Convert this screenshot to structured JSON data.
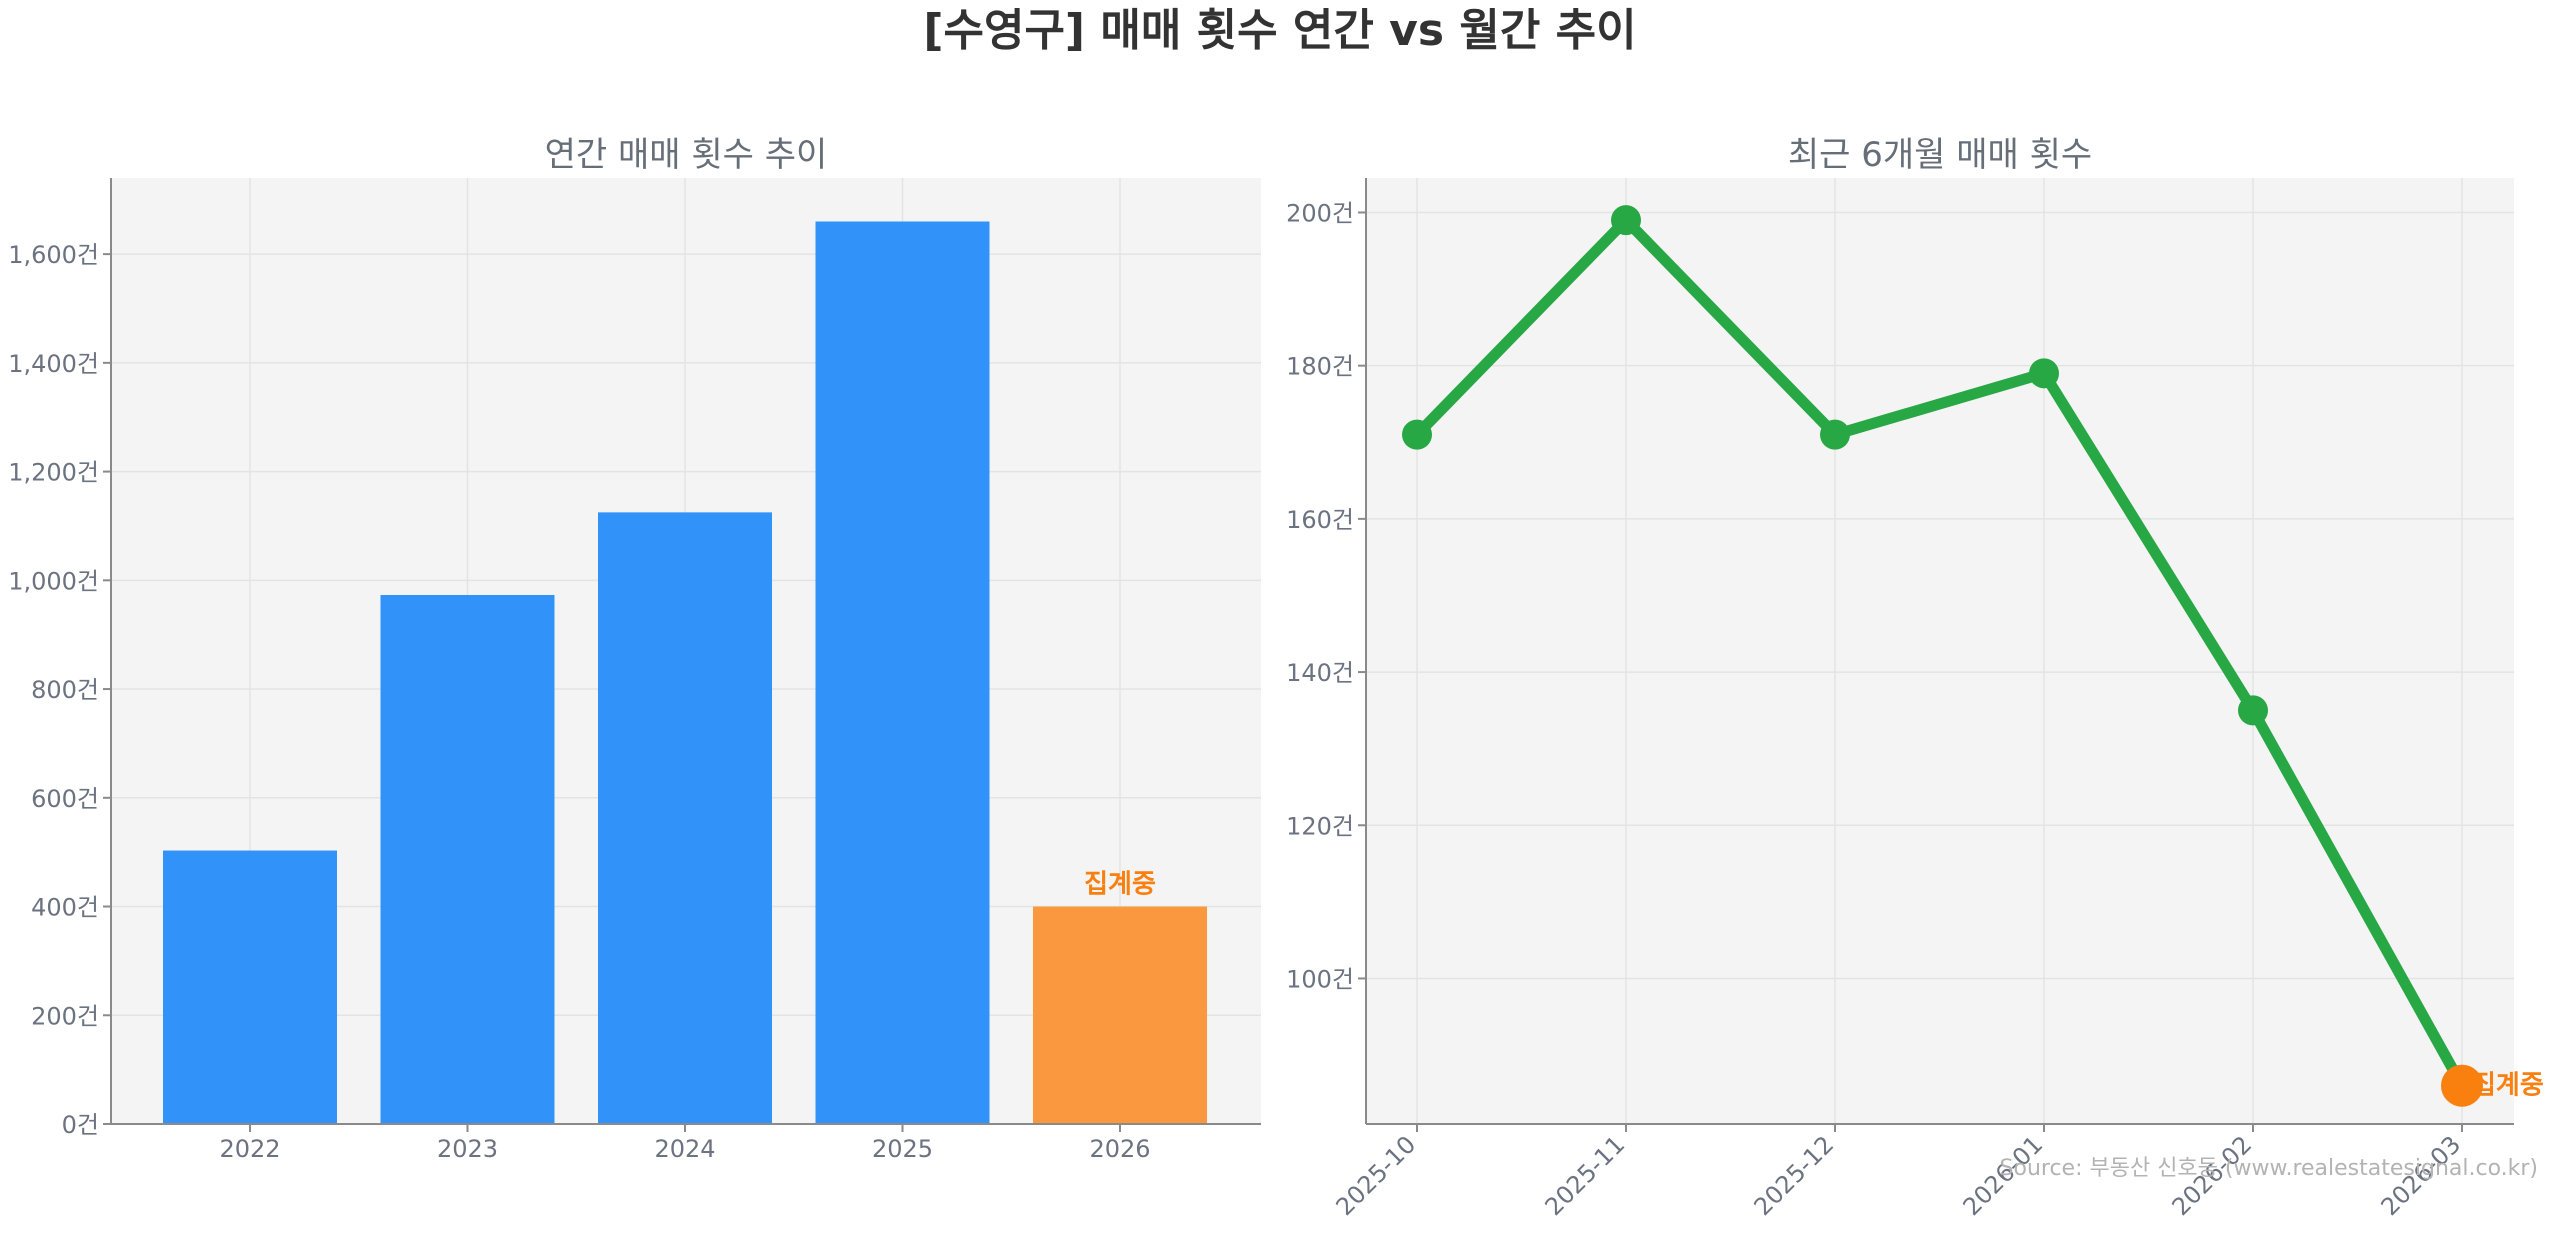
{
  "title": "[수영구] 매매 횟수 연간 vs 월간 추이",
  "source": "Source: 부동산 신호등 (www.realestatesignal.co.kr)",
  "colors": {
    "bar": "#3193fa",
    "bar_partial": "#f9983f",
    "line": "#28a745",
    "partial_marker": "#f97f0f",
    "annotation": "#f97f0f"
  },
  "chart_data": [
    {
      "type": "bar",
      "title": "연간 매매 횟수 추이",
      "categories": [
        "2022",
        "2023",
        "2024",
        "2025",
        "2026"
      ],
      "values": [
        503,
        973,
        1125,
        1660,
        400
      ],
      "partial_index": 4,
      "annotation": "집계중",
      "ylim": [
        0,
        1740
      ],
      "yticks": [
        0,
        200,
        400,
        600,
        800,
        1000,
        1200,
        1400,
        1600
      ],
      "ytick_labels": [
        "0건",
        "200건",
        "400건",
        "600건",
        "800건",
        "1,000건",
        "1,200건",
        "1,400건",
        "1,600건"
      ],
      "grid": true
    },
    {
      "type": "line",
      "title": "최근 6개월 매매 횟수",
      "x": [
        "2025-10",
        "2025-11",
        "2025-12",
        "2026-01",
        "2026-02",
        "2026-03"
      ],
      "values": [
        171,
        199,
        171,
        179,
        135,
        86
      ],
      "partial_index": 5,
      "annotation": "집계중",
      "ylim": [
        81,
        204.5
      ],
      "yticks": [
        100,
        120,
        140,
        160,
        180,
        200
      ],
      "ytick_labels": [
        "100건",
        "120건",
        "140건",
        "160건",
        "180건",
        "200건"
      ],
      "grid": true
    }
  ]
}
